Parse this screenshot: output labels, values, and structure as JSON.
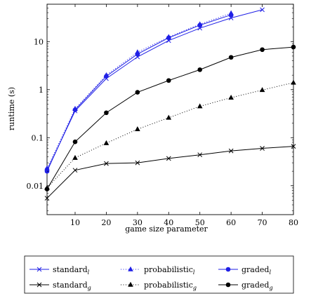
{
  "chart_data": {
    "type": "line",
    "xlabel": "game size parameter",
    "ylabel": "runtime (s)",
    "xlim": [
      1,
      80
    ],
    "ylim": [
      0.0025,
      60
    ],
    "yscale": "log",
    "grid": false,
    "x_ticks": [
      {
        "value": 10,
        "label": "10"
      },
      {
        "value": 20,
        "label": "20"
      },
      {
        "value": 30,
        "label": "30"
      },
      {
        "value": 40,
        "label": "40"
      },
      {
        "value": 50,
        "label": "50"
      },
      {
        "value": 60,
        "label": "60"
      },
      {
        "value": 70,
        "label": "70"
      },
      {
        "value": 80,
        "label": "80"
      }
    ],
    "y_ticks": [
      {
        "value": 0.01,
        "label": "0.01"
      },
      {
        "value": 0.1,
        "label": "0.1"
      },
      {
        "value": 1,
        "label": "1"
      },
      {
        "value": 10,
        "label": "10"
      }
    ],
    "legend_position": "bottom",
    "series": [
      {
        "name": "standard",
        "sub": "l",
        "color": "#1f1fe6",
        "marker": "x",
        "dash": "solid",
        "x": [
          1,
          10,
          20,
          30,
          40,
          50,
          60,
          70
        ],
        "y": [
          0.021,
          0.36,
          1.7,
          4.8,
          10.5,
          19,
          31,
          46
        ]
      },
      {
        "name": "probabilistic",
        "sub": "l",
        "color": "#1f1fe6",
        "marker": "triangle",
        "dash": "dotted",
        "x": [
          1,
          10,
          20,
          30,
          40,
          50,
          60
        ],
        "y": [
          0.023,
          0.4,
          2.0,
          6.0,
          12.5,
          23,
          39
        ]
      },
      {
        "name": "graded",
        "sub": "l",
        "color": "#1f1fe6",
        "marker": "circle",
        "dash": "solid",
        "x": [
          1,
          10,
          20,
          30,
          40,
          50,
          60
        ],
        "y": [
          0.02,
          0.38,
          1.9,
          5.5,
          12,
          22,
          36
        ]
      },
      {
        "name": "standard",
        "sub": "g",
        "color": "#000000",
        "marker": "x",
        "dash": "solid",
        "x": [
          1,
          10,
          20,
          30,
          40,
          50,
          60,
          70,
          80
        ],
        "y": [
          0.0055,
          0.021,
          0.029,
          0.03,
          0.037,
          0.044,
          0.053,
          0.06,
          0.066
        ]
      },
      {
        "name": "probabilistic",
        "sub": "g",
        "color": "#000000",
        "marker": "triangle",
        "dash": "dotted",
        "x": [
          1,
          10,
          20,
          30,
          40,
          50,
          60,
          70,
          80
        ],
        "y": [
          0.009,
          0.038,
          0.077,
          0.15,
          0.26,
          0.45,
          0.68,
          0.98,
          1.4
        ]
      },
      {
        "name": "graded",
        "sub": "g",
        "color": "#000000",
        "marker": "circle",
        "dash": "solid",
        "x": [
          1,
          10,
          20,
          30,
          40,
          50,
          60,
          70,
          80
        ],
        "y": [
          0.0085,
          0.082,
          0.33,
          0.88,
          1.55,
          2.6,
          4.7,
          6.8,
          7.7
        ]
      }
    ]
  }
}
